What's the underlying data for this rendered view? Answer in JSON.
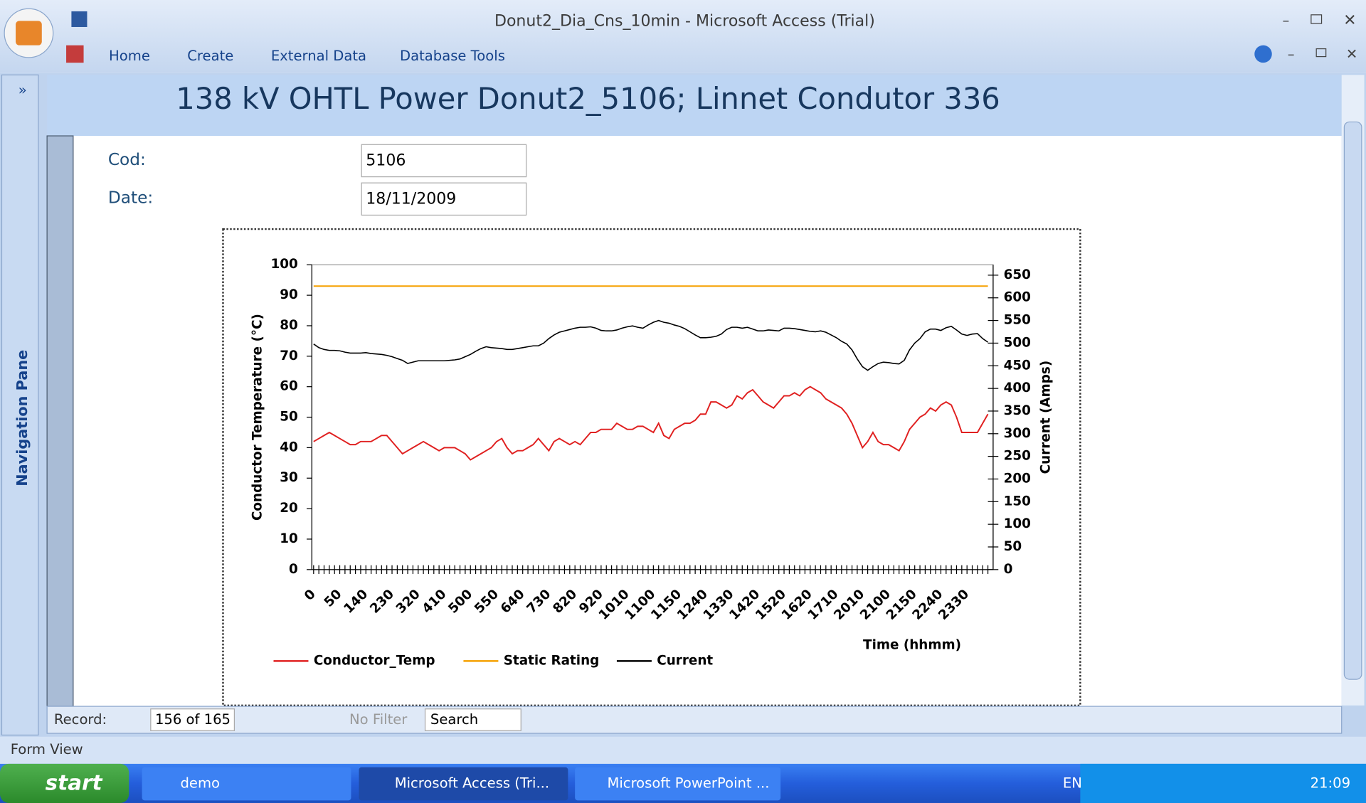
{
  "window": {
    "title": "Donut2_Dia_Cns_10min - Microsoft Access (Trial)"
  },
  "ribbon": {
    "tabs": [
      "Home",
      "Create",
      "External Data",
      "Database Tools"
    ]
  },
  "nav_pane": {
    "label": "Navigation Pane"
  },
  "form": {
    "title": "138 kV OHTL Power Donut2_5106; Linnet Condutor 336",
    "fields": [
      {
        "label": "Cod:",
        "value": "5106"
      },
      {
        "label": "Date:",
        "value": "18/11/2009"
      }
    ]
  },
  "chart_data": {
    "type": "line",
    "xlabel": "Time (hhmm)",
    "ylabel": "Conductor Temperature (°C)",
    "y2label": "Current (Amps)",
    "categories": [
      "0",
      null,
      null,
      null,
      null,
      "50",
      null,
      null,
      null,
      null,
      "140",
      null,
      null,
      null,
      null,
      "230",
      null,
      null,
      null,
      null,
      "320",
      null,
      null,
      null,
      null,
      "410",
      null,
      null,
      null,
      null,
      "500",
      null,
      null,
      null,
      null,
      "550",
      null,
      null,
      null,
      null,
      "640",
      null,
      null,
      null,
      null,
      "730",
      null,
      null,
      null,
      null,
      "820",
      null,
      null,
      null,
      null,
      "920",
      null,
      null,
      null,
      null,
      "1010",
      null,
      null,
      null,
      null,
      "1100",
      null,
      null,
      null,
      null,
      "1150",
      null,
      null,
      null,
      null,
      "1240",
      null,
      null,
      null,
      null,
      "1330",
      null,
      null,
      null,
      null,
      "1420",
      null,
      null,
      null,
      null,
      "1520",
      null,
      null,
      null,
      null,
      "1620",
      null,
      null,
      null,
      null,
      "1710",
      null,
      null,
      null,
      null,
      "2010",
      null,
      null,
      null,
      null,
      "2100",
      null,
      null,
      null,
      null,
      "2150",
      null,
      null,
      null,
      null,
      "2240",
      null,
      null,
      null,
      null,
      "2330",
      null,
      null,
      null,
      null
    ],
    "series": [
      {
        "name": "Conductor_Temp",
        "color": "#e02020",
        "axis": "y",
        "values": [
          42,
          43,
          44,
          45,
          44,
          43,
          42,
          41,
          41,
          42,
          42,
          42,
          43,
          44,
          44,
          42,
          40,
          38,
          39,
          40,
          41,
          42,
          41,
          40,
          39,
          40,
          40,
          40,
          39,
          38,
          36,
          37,
          38,
          39,
          40,
          42,
          43,
          40,
          38,
          39,
          39,
          40,
          41,
          43,
          41,
          39,
          42,
          43,
          42,
          41,
          42,
          41,
          43,
          45,
          45,
          46,
          46,
          46,
          48,
          47,
          46,
          46,
          47,
          47,
          46,
          45,
          48,
          44,
          43,
          46,
          47,
          48,
          48,
          49,
          51,
          51,
          55,
          55,
          54,
          53,
          54,
          57,
          56,
          58,
          59,
          57,
          55,
          54,
          53,
          55,
          57,
          57,
          58,
          57,
          59,
          60,
          59,
          58,
          56,
          55,
          54,
          53,
          51,
          48,
          44,
          40,
          42,
          45,
          42,
          41,
          41,
          40,
          39,
          42,
          46,
          48,
          50,
          51,
          53,
          52,
          54,
          55,
          54,
          50,
          45,
          45,
          45,
          45,
          48,
          51
        ]
      },
      {
        "name": "Static Rating",
        "color": "#f5a000",
        "axis": "y",
        "values": [
          93,
          93,
          93,
          93,
          93,
          93,
          93,
          93,
          93,
          93,
          93,
          93,
          93,
          93,
          93,
          93,
          93,
          93,
          93,
          93,
          93,
          93,
          93,
          93,
          93,
          93,
          93,
          93,
          93,
          93,
          93,
          93,
          93,
          93,
          93,
          93,
          93,
          93,
          93,
          93,
          93,
          93,
          93,
          93,
          93,
          93,
          93,
          93,
          93,
          93,
          93,
          93,
          93,
          93,
          93,
          93,
          93,
          93,
          93,
          93,
          93,
          93,
          93,
          93,
          93,
          93,
          93,
          93,
          93,
          93,
          93,
          93,
          93,
          93,
          93,
          93,
          93,
          93,
          93,
          93,
          93,
          93,
          93,
          93,
          93,
          93,
          93,
          93,
          93,
          93,
          93,
          93,
          93,
          93,
          93,
          93,
          93,
          93,
          93,
          93,
          93,
          93,
          93,
          93,
          93,
          93,
          93,
          93,
          93,
          93,
          93,
          93,
          93,
          93,
          93,
          93,
          93,
          93,
          93,
          93,
          93,
          93,
          93,
          93,
          93,
          93,
          93,
          93,
          93,
          93
        ]
      },
      {
        "name": "Current",
        "color": "#000000",
        "axis": "y2",
        "values": [
          498,
          490,
          486,
          484,
          484,
          483,
          480,
          478,
          478,
          478,
          479,
          477,
          476,
          475,
          473,
          470,
          466,
          462,
          455,
          458,
          461,
          461,
          461,
          461,
          461,
          461,
          462,
          463,
          465,
          470,
          475,
          482,
          488,
          492,
          490,
          489,
          488,
          486,
          486,
          488,
          490,
          492,
          494,
          494,
          500,
          510,
          518,
          524,
          527,
          530,
          533,
          535,
          535,
          536,
          533,
          528,
          527,
          527,
          529,
          533,
          536,
          538,
          535,
          533,
          540,
          546,
          550,
          546,
          544,
          540,
          537,
          532,
          525,
          518,
          512,
          512,
          513,
          515,
          520,
          530,
          535,
          535,
          533,
          535,
          531,
          527,
          527,
          529,
          528,
          527,
          533,
          533,
          532,
          530,
          528,
          526,
          525,
          527,
          524,
          518,
          512,
          504,
          498,
          485,
          465,
          448,
          440,
          448,
          455,
          458,
          457,
          455,
          454,
          462,
          485,
          500,
          510,
          525,
          531,
          531,
          528,
          534,
          537,
          529,
          520,
          517,
          520,
          521,
          510,
          502
        ]
      }
    ],
    "ylim": [
      0,
      100
    ],
    "yticks": [
      0,
      10,
      20,
      30,
      40,
      50,
      60,
      70,
      80,
      90,
      100
    ],
    "y2lim": [
      0,
      673
    ],
    "y2ticks": [
      0,
      50,
      100,
      150,
      200,
      250,
      300,
      350,
      400,
      450,
      500,
      550,
      600,
      650
    ],
    "grid": false,
    "legend": "bottom"
  },
  "record_nav": {
    "label": "Record:",
    "position": "156 of 165",
    "filter": "No Filter",
    "search": "Search"
  },
  "status": {
    "view": "Form View"
  },
  "taskbar": {
    "start": "start",
    "items": [
      "demo",
      "Microsoft Access (Tri...",
      "Microsoft PowerPoint ..."
    ],
    "lang": "EN",
    "clock": "21:09"
  }
}
